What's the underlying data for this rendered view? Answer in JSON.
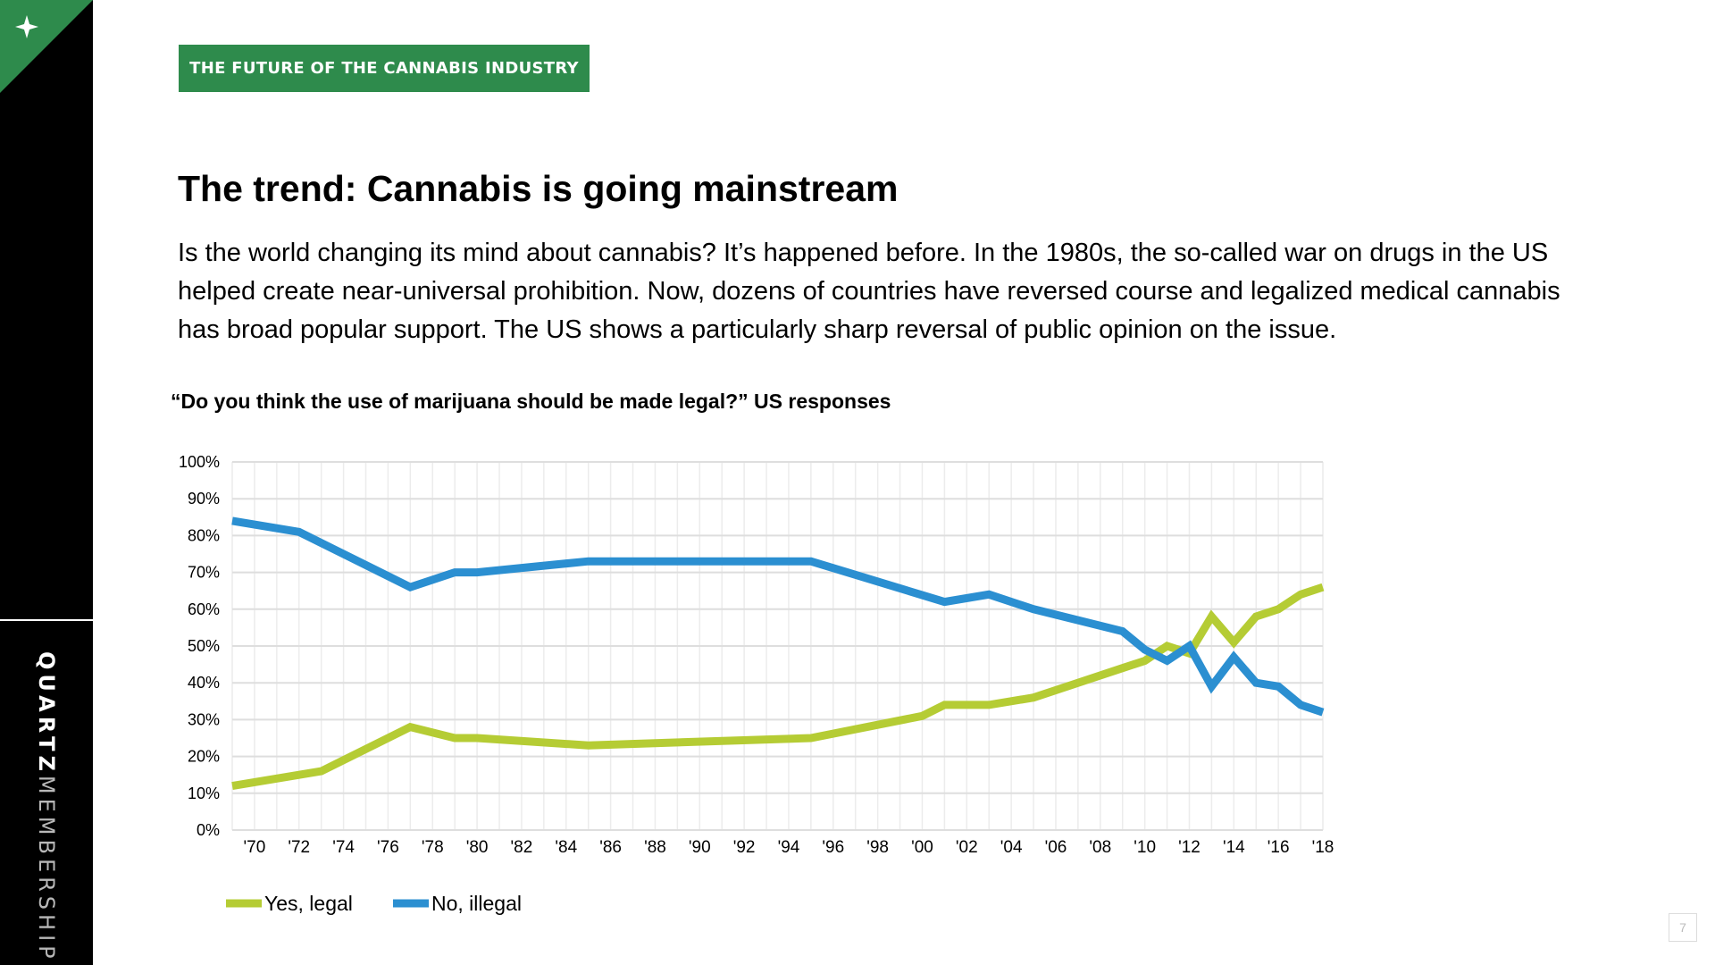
{
  "sidebar": {
    "brand_part1": "QUARTZ",
    "brand_part2": "MEMBERSHIP",
    "corner_icon": "sparkle-icon",
    "colors": {
      "bg": "#000000",
      "accent": "#2e8b4c"
    }
  },
  "header": {
    "badge": "THE FUTURE OF THE CANNABIS INDUSTRY"
  },
  "main": {
    "title": "The trend: Cannabis is going mainstream",
    "description": "Is the world changing its mind about cannabis? It’s happened before. In the 1980s, the so-called war on drugs in the US helped create near-universal prohibition. Now, dozens of countries have reversed course and legalized medical cannabis has broad popular support. The US shows a particularly sharp reversal of public opinion on the issue.",
    "chart_question": "“Do you think the use of marijuana should be made legal?” US responses"
  },
  "footer": {
    "page_number": "7"
  },
  "chart_data": {
    "type": "line",
    "title": "“Do you think the use of marijuana should be made legal?” US responses",
    "xlabel": "",
    "ylabel": "",
    "xlim": [
      1969,
      2018
    ],
    "ylim": [
      0,
      100
    ],
    "x_ticks": [
      1970,
      1972,
      1974,
      1976,
      1978,
      1980,
      1982,
      1984,
      1986,
      1988,
      1990,
      1992,
      1994,
      1996,
      1998,
      2000,
      2002,
      2004,
      2006,
      2008,
      2010,
      2012,
      2014,
      2016,
      2018
    ],
    "x_tick_labels": [
      "'70",
      "'72",
      "'74",
      "'76",
      "'78",
      "'80",
      "'82",
      "'84",
      "'86",
      "'88",
      "'90",
      "'92",
      "'94",
      "'96",
      "'98",
      "'00",
      "'02",
      "'04",
      "'06",
      "'08",
      "'10",
      "'12",
      "'14",
      "'16",
      "'18"
    ],
    "y_ticks": [
      0,
      10,
      20,
      30,
      40,
      50,
      60,
      70,
      80,
      90,
      100
    ],
    "y_tick_labels": [
      "0%",
      "10%",
      "20%",
      "30%",
      "40%",
      "50%",
      "60%",
      "70%",
      "80%",
      "90%",
      "100%"
    ],
    "grid": true,
    "legend_position": "bottom-left",
    "series": [
      {
        "name": "Yes, legal",
        "color": "#b5cc34",
        "points": [
          [
            1969,
            12
          ],
          [
            1972,
            15
          ],
          [
            1973,
            16
          ],
          [
            1977,
            28
          ],
          [
            1979,
            25
          ],
          [
            1980,
            25
          ],
          [
            1985,
            23
          ],
          [
            1995,
            25
          ],
          [
            2000,
            31
          ],
          [
            2001,
            34
          ],
          [
            2003,
            34
          ],
          [
            2005,
            36
          ],
          [
            2009,
            44
          ],
          [
            2010,
            46
          ],
          [
            2011,
            50
          ],
          [
            2012,
            48
          ],
          [
            2013,
            58
          ],
          [
            2014,
            51
          ],
          [
            2015,
            58
          ],
          [
            2016,
            60
          ],
          [
            2017,
            64
          ],
          [
            2018,
            66
          ]
        ]
      },
      {
        "name": "No, illegal",
        "color": "#2b8fd1",
        "points": [
          [
            1969,
            84
          ],
          [
            1972,
            81
          ],
          [
            1977,
            66
          ],
          [
            1979,
            70
          ],
          [
            1980,
            70
          ],
          [
            1985,
            73
          ],
          [
            1995,
            73
          ],
          [
            2001,
            62
          ],
          [
            2003,
            64
          ],
          [
            2005,
            60
          ],
          [
            2009,
            54
          ],
          [
            2010,
            49
          ],
          [
            2011,
            46
          ],
          [
            2012,
            50
          ],
          [
            2013,
            39
          ],
          [
            2014,
            47
          ],
          [
            2015,
            40
          ],
          [
            2016,
            39
          ],
          [
            2017,
            34
          ],
          [
            2018,
            32
          ]
        ]
      }
    ]
  }
}
